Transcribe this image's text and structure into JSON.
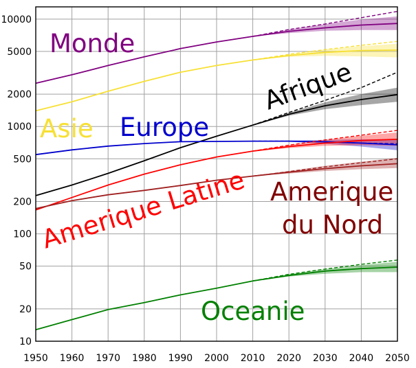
{
  "chart_data": {
    "type": "line",
    "y_scale": "log",
    "xlim": [
      1950,
      2050
    ],
    "ylim": [
      10,
      13000
    ],
    "grid": true,
    "x_ticks": [
      1950,
      1960,
      1970,
      1980,
      1990,
      2000,
      2010,
      2020,
      2030,
      2040,
      2050
    ],
    "y_ticks": [
      10,
      20,
      50,
      100,
      200,
      500,
      1000,
      2000,
      5000,
      10000
    ],
    "series": [
      {
        "name": "Monde",
        "color": "#800080",
        "x": [
          1950,
          1960,
          1970,
          1980,
          1990,
          2000,
          2010
        ],
        "values": [
          2530,
          3030,
          3700,
          4450,
          5310,
          6130,
          6900
        ],
        "projection_x": [
          2010,
          2020,
          2030,
          2040,
          2050
        ],
        "projection_median": [
          6900,
          7700,
          8300,
          8800,
          9100
        ],
        "projection_high": [
          6900,
          8000,
          9000,
          10300,
          11800
        ],
        "projection_band_low": [
          6900,
          7400,
          7800,
          7900,
          7900
        ],
        "projection_band_high": [
          6900,
          8000,
          9000,
          9900,
          10600
        ]
      },
      {
        "name": "Asie",
        "color": "#f7e034",
        "x": [
          1950,
          1960,
          1970,
          1980,
          1990,
          2000,
          2010
        ],
        "values": [
          1400,
          1700,
          2130,
          2630,
          3200,
          3700,
          4160
        ],
        "projection_x": [
          2010,
          2020,
          2030,
          2040,
          2050
        ],
        "projection_median": [
          4160,
          4580,
          4900,
          5100,
          5150
        ],
        "projection_high": [
          4160,
          4700,
          5200,
          5700,
          6200
        ],
        "projection_band_low": [
          4160,
          4450,
          4550,
          4500,
          4400
        ],
        "projection_band_high": [
          4160,
          4700,
          5200,
          5600,
          5900
        ]
      },
      {
        "name": "Afrique",
        "color": "#000000",
        "x": [
          1950,
          1960,
          1970,
          1980,
          1990,
          2000,
          2010
        ],
        "values": [
          227,
          285,
          366,
          480,
          635,
          811,
          1030
        ],
        "projection_x": [
          2010,
          2020,
          2030,
          2040,
          2050
        ],
        "projection_median": [
          1030,
          1300,
          1560,
          1780,
          1980
        ],
        "projection_high": [
          1030,
          1350,
          1750,
          2300,
          3200
        ],
        "projection_band_low": [
          1030,
          1260,
          1450,
          1580,
          1700
        ],
        "projection_band_high": [
          1030,
          1340,
          1680,
          2000,
          2300
        ]
      },
      {
        "name": "Europe",
        "color": "#0000cc",
        "x": [
          1950,
          1960,
          1970,
          1980,
          1990,
          2000,
          2010
        ],
        "values": [
          547,
          605,
          656,
          693,
          721,
          726,
          730
        ],
        "projection_x": [
          2010,
          2020,
          2030,
          2040,
          2050
        ],
        "projection_median": [
          730,
          730,
          720,
          700,
          675
        ],
        "projection_high": [
          730,
          730,
          720,
          700,
          690
        ],
        "projection_band_low": [
          730,
          720,
          690,
          650,
          600
        ],
        "projection_band_high": [
          730,
          740,
          750,
          760,
          760
        ]
      },
      {
        "name": "Amerique Latine",
        "color": "#ff0000",
        "x": [
          1950,
          1960,
          1970,
          1980,
          1990,
          2000,
          2010
        ],
        "values": [
          167,
          218,
          285,
          360,
          440,
          520,
          590
        ],
        "projection_x": [
          2010,
          2020,
          2030,
          2040,
          2050
        ],
        "projection_median": [
          590,
          650,
          700,
          740,
          760
        ],
        "projection_high": [
          590,
          670,
          750,
          830,
          920
        ],
        "projection_band_low": [
          590,
          630,
          660,
          670,
          660
        ],
        "projection_band_high": [
          590,
          670,
          750,
          820,
          880
        ]
      },
      {
        "name": "Amerique du Nord",
        "color": "#a02020",
        "x": [
          1950,
          1960,
          1970,
          1980,
          1990,
          2000,
          2010
        ],
        "values": [
          172,
          204,
          231,
          254,
          282,
          316,
          345
        ],
        "projection_x": [
          2010,
          2020,
          2030,
          2040,
          2050
        ],
        "projection_median": [
          345,
          375,
          405,
          430,
          450
        ],
        "projection_high": [
          345,
          380,
          420,
          460,
          500
        ],
        "projection_band_low": [
          345,
          365,
          385,
          400,
          410
        ],
        "projection_band_high": [
          345,
          385,
          430,
          470,
          510
        ]
      },
      {
        "name": "Oceanie",
        "color": "#008000",
        "x": [
          1950,
          1960,
          1970,
          1980,
          1990,
          2000,
          2010
        ],
        "values": [
          12.8,
          15.9,
          19.7,
          22.9,
          27.0,
          31.2,
          36.4
        ],
        "projection_x": [
          2010,
          2020,
          2030,
          2040,
          2050
        ],
        "projection_median": [
          36.4,
          41,
          45,
          47.5,
          49
        ],
        "projection_high": [
          36.4,
          42,
          47,
          52,
          57
        ],
        "projection_band_low": [
          36.4,
          40,
          42.5,
          44,
          44
        ],
        "projection_band_high": [
          36.4,
          42,
          47,
          51,
          55
        ]
      }
    ],
    "labels": [
      {
        "text": "Monde",
        "color": "#800080"
      },
      {
        "text": "Asie",
        "color": "#f7e034"
      },
      {
        "text": "Europe",
        "color": "#0000cc"
      },
      {
        "text": "Afrique",
        "color": "#000000"
      },
      {
        "text": "Amerique Latine",
        "color": "#ff0000"
      },
      {
        "text": "Amerique",
        "color": "#800000"
      },
      {
        "text": "du Nord",
        "color": "#800000"
      },
      {
        "text": "Oceanie",
        "color": "#008000"
      }
    ]
  }
}
